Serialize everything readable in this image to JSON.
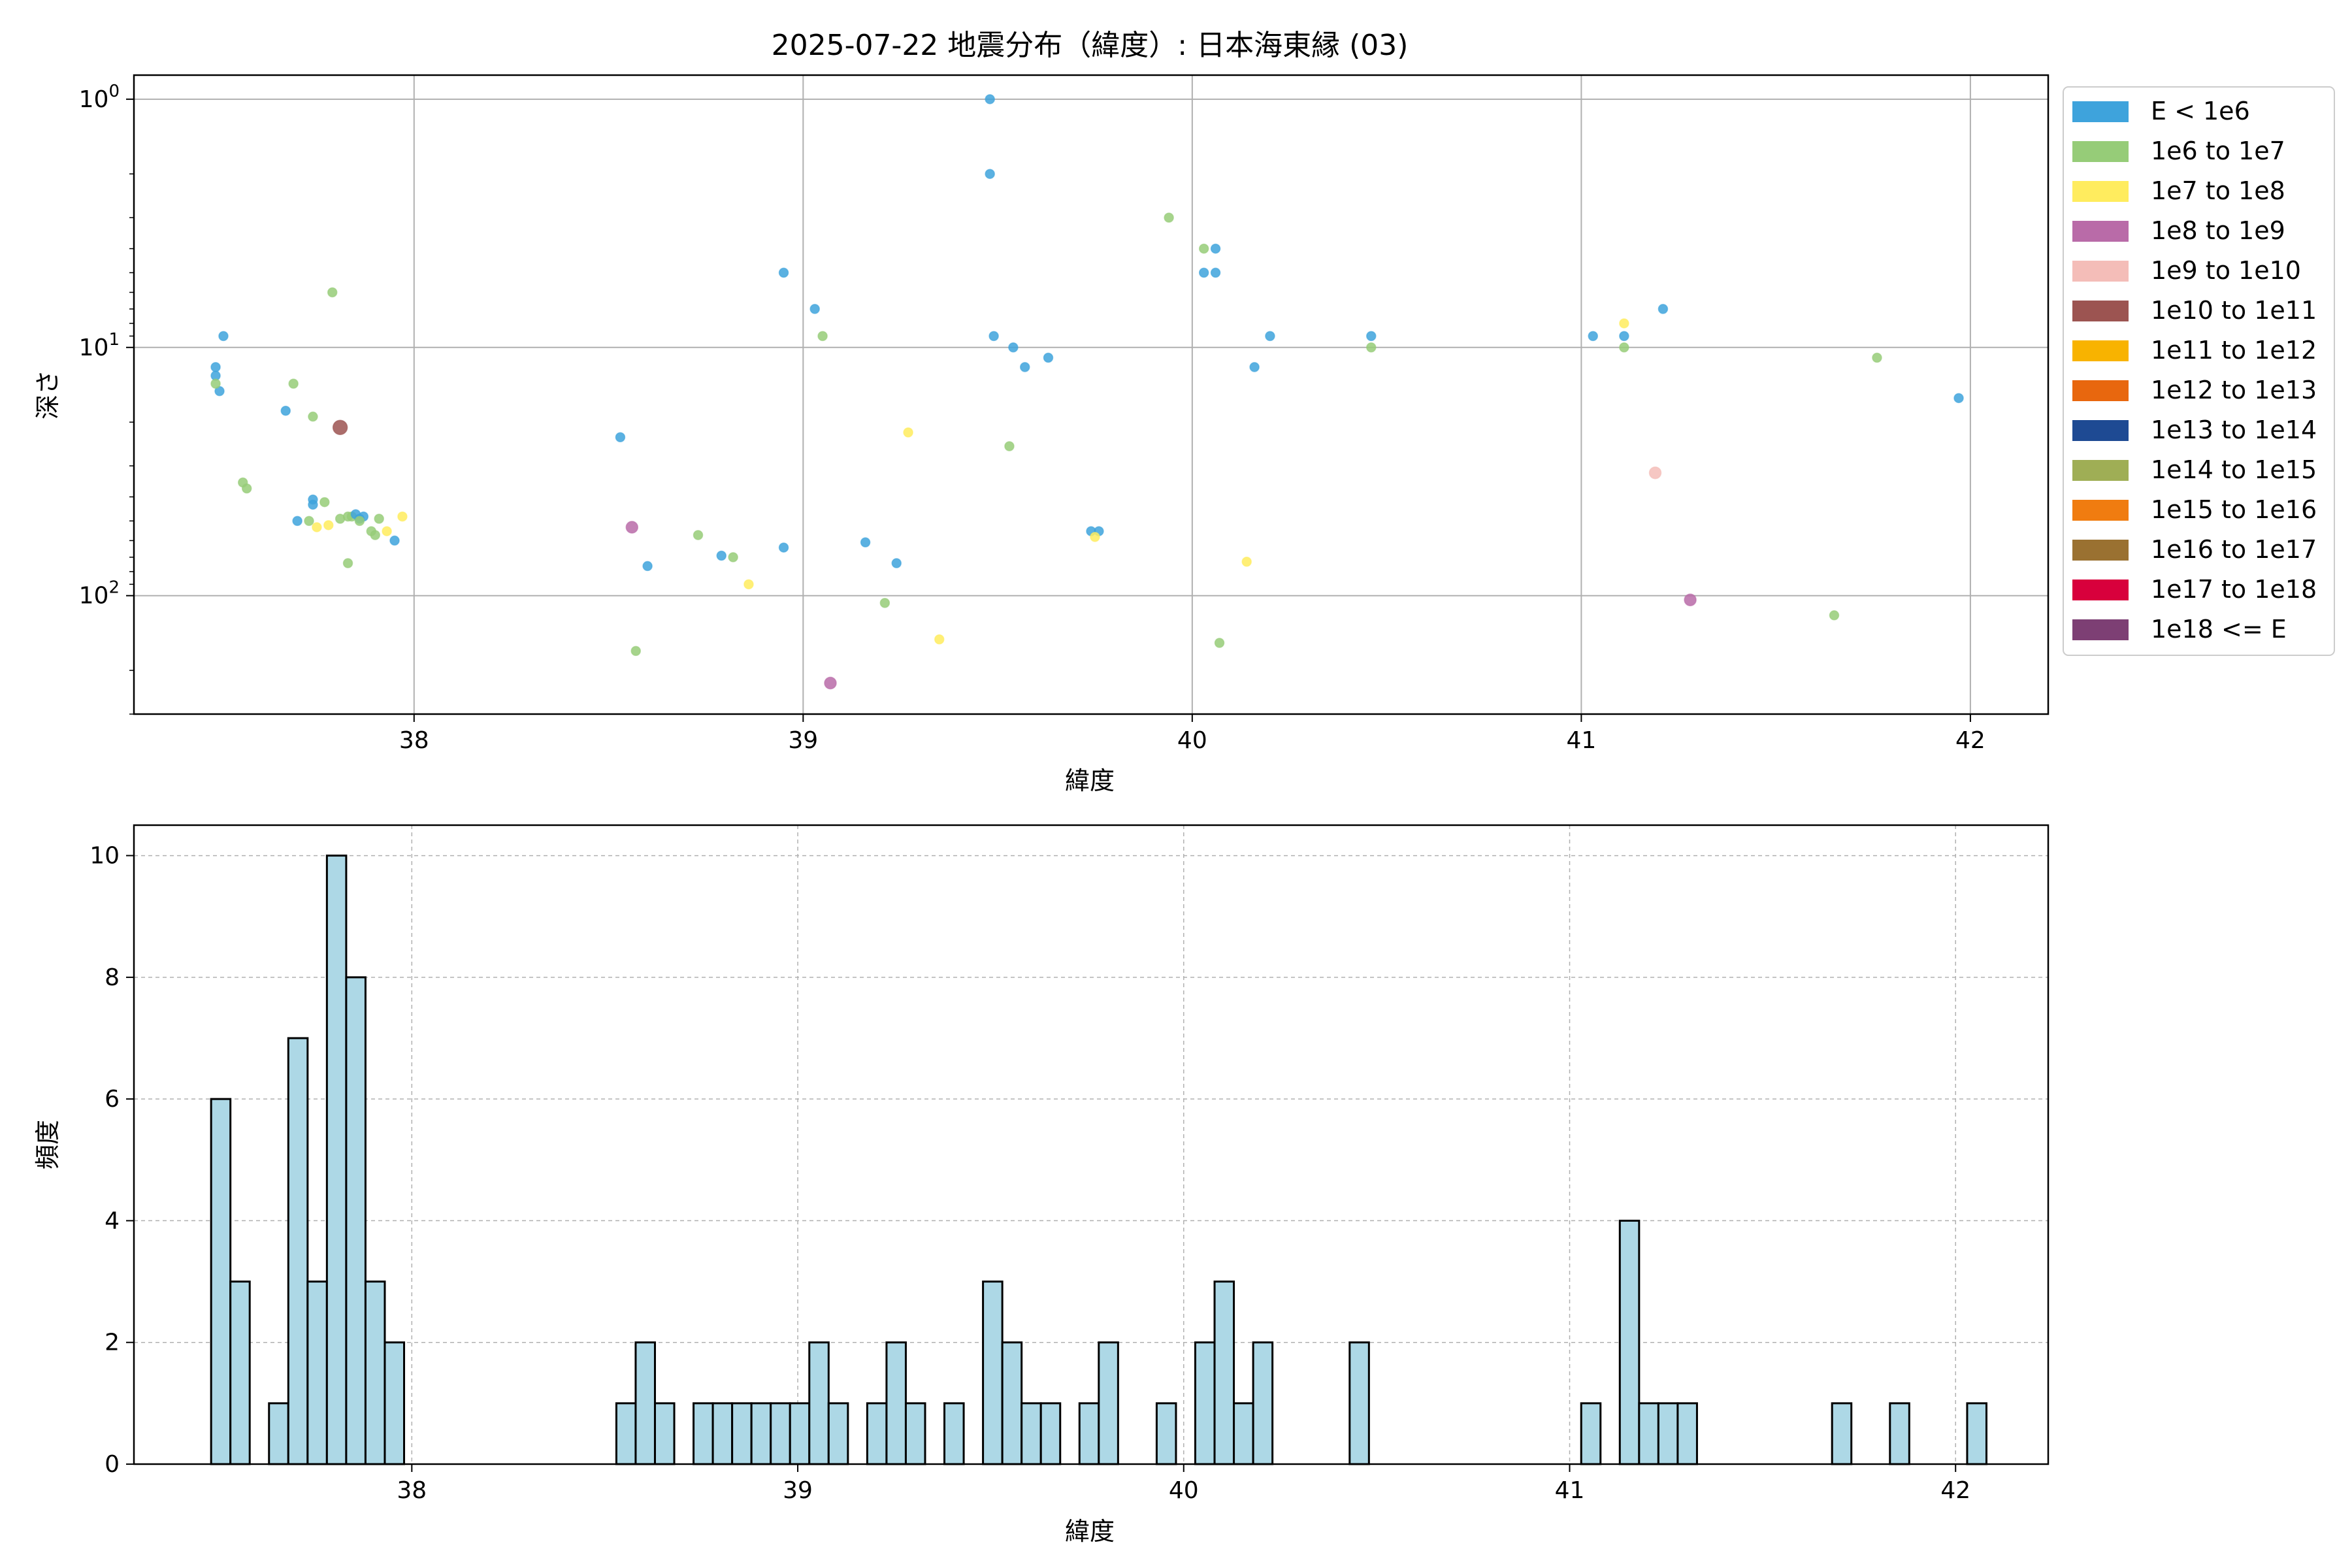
{
  "chart_data": [
    {
      "type": "scatter",
      "title": "2025-07-22 地震分布（緯度）: 日本海東縁 (03)",
      "xlabel": "緯度",
      "ylabel": "深さ",
      "xlim": [
        37.28,
        42.2
      ],
      "ylim": [
        300,
        0.8
      ],
      "yscale": "log",
      "yaxis_inverted": true,
      "grid": true,
      "x_ticks": [
        "38",
        "39",
        "40",
        "41",
        "42"
      ],
      "y_ticks": [
        "10^0",
        "10^1",
        "10^2"
      ],
      "legend_position": "outside-right",
      "legend": [
        {
          "label": "E < 1e6",
          "color": "#3ea3dc"
        },
        {
          "label": "1e6 to 1e7",
          "color": "#96cc78"
        },
        {
          "label": "1e7 to 1e8",
          "color": "#ffec5e"
        },
        {
          "label": "1e8 to 1e9",
          "color": "#b96ba8"
        },
        {
          "label": "1e9 to 1e10",
          "color": "#f4bdb8"
        },
        {
          "label": "1e10 to 1e11",
          "color": "#9c5451"
        },
        {
          "label": "1e11 to 1e12",
          "color": "#f8b300"
        },
        {
          "label": "1e12 to 1e13",
          "color": "#e8670e"
        },
        {
          "label": "1e13 to 1e14",
          "color": "#1e4a93"
        },
        {
          "label": "1e14 to 1e15",
          "color": "#9fae55"
        },
        {
          "label": "1e15 to 1e16",
          "color": "#f07c10"
        },
        {
          "label": "1e16 to 1e17",
          "color": "#9a7131"
        },
        {
          "label": "1e17 to 1e18",
          "color": "#d8003c"
        },
        {
          "label": "1e18 <= E",
          "color": "#7d3f74"
        }
      ],
      "points": [
        {
          "x": 37.51,
          "y": 9,
          "c": 0
        },
        {
          "x": 37.49,
          "y": 12,
          "c": 0
        },
        {
          "x": 37.49,
          "y": 13,
          "c": 0
        },
        {
          "x": 37.5,
          "y": 15,
          "c": 0
        },
        {
          "x": 37.49,
          "y": 14,
          "c": 1
        },
        {
          "x": 37.56,
          "y": 35,
          "c": 1
        },
        {
          "x": 37.57,
          "y": 37,
          "c": 1
        },
        {
          "x": 37.67,
          "y": 18,
          "c": 0
        },
        {
          "x": 37.69,
          "y": 14,
          "c": 1
        },
        {
          "x": 37.7,
          "y": 50,
          "c": 0
        },
        {
          "x": 37.73,
          "y": 50,
          "c": 1
        },
        {
          "x": 37.74,
          "y": 19,
          "c": 1
        },
        {
          "x": 37.74,
          "y": 41,
          "c": 0
        },
        {
          "x": 37.74,
          "y": 43,
          "c": 0
        },
        {
          "x": 37.75,
          "y": 53,
          "c": 2
        },
        {
          "x": 37.77,
          "y": 42,
          "c": 1
        },
        {
          "x": 37.78,
          "y": 52,
          "c": 2
        },
        {
          "x": 37.79,
          "y": 6,
          "c": 1
        },
        {
          "x": 37.81,
          "y": 21,
          "c": 5
        },
        {
          "x": 37.81,
          "y": 49,
          "c": 1
        },
        {
          "x": 37.83,
          "y": 48,
          "c": 1
        },
        {
          "x": 37.83,
          "y": 74,
          "c": 1
        },
        {
          "x": 37.84,
          "y": 48,
          "c": 1
        },
        {
          "x": 37.85,
          "y": 47,
          "c": 0
        },
        {
          "x": 37.86,
          "y": 49,
          "c": 0
        },
        {
          "x": 37.87,
          "y": 48,
          "c": 0
        },
        {
          "x": 37.86,
          "y": 50,
          "c": 1
        },
        {
          "x": 37.89,
          "y": 55,
          "c": 1
        },
        {
          "x": 37.9,
          "y": 57,
          "c": 1
        },
        {
          "x": 37.91,
          "y": 49,
          "c": 1
        },
        {
          "x": 37.93,
          "y": 55,
          "c": 2
        },
        {
          "x": 37.95,
          "y": 60,
          "c": 0
        },
        {
          "x": 37.97,
          "y": 48,
          "c": 2
        },
        {
          "x": 38.53,
          "y": 23,
          "c": 0
        },
        {
          "x": 38.56,
          "y": 53,
          "c": 3
        },
        {
          "x": 38.57,
          "y": 167,
          "c": 1
        },
        {
          "x": 38.6,
          "y": 76,
          "c": 0
        },
        {
          "x": 38.73,
          "y": 57,
          "c": 1
        },
        {
          "x": 38.79,
          "y": 69,
          "c": 0
        },
        {
          "x": 38.82,
          "y": 70,
          "c": 1
        },
        {
          "x": 38.86,
          "y": 90,
          "c": 2
        },
        {
          "x": 38.95,
          "y": 5,
          "c": 0
        },
        {
          "x": 38.95,
          "y": 64,
          "c": 0
        },
        {
          "x": 39.03,
          "y": 7,
          "c": 0
        },
        {
          "x": 39.05,
          "y": 9,
          "c": 1
        },
        {
          "x": 39.07,
          "y": 225,
          "c": 3
        },
        {
          "x": 39.16,
          "y": 61,
          "c": 0
        },
        {
          "x": 39.21,
          "y": 107,
          "c": 1
        },
        {
          "x": 39.24,
          "y": 74,
          "c": 0
        },
        {
          "x": 39.27,
          "y": 22,
          "c": 2
        },
        {
          "x": 39.35,
          "y": 150,
          "c": 2
        },
        {
          "x": 39.48,
          "y": 1,
          "c": 0
        },
        {
          "x": 39.48,
          "y": 2,
          "c": 0
        },
        {
          "x": 39.49,
          "y": 9,
          "c": 0
        },
        {
          "x": 39.53,
          "y": 25,
          "c": 1
        },
        {
          "x": 39.54,
          "y": 10,
          "c": 0
        },
        {
          "x": 39.57,
          "y": 12,
          "c": 0
        },
        {
          "x": 39.63,
          "y": 11,
          "c": 0
        },
        {
          "x": 39.74,
          "y": 55,
          "c": 0
        },
        {
          "x": 39.76,
          "y": 55,
          "c": 0
        },
        {
          "x": 39.75,
          "y": 58,
          "c": 2
        },
        {
          "x": 39.94,
          "y": 3,
          "c": 1
        },
        {
          "x": 40.03,
          "y": 4,
          "c": 1
        },
        {
          "x": 40.03,
          "y": 5,
          "c": 0
        },
        {
          "x": 40.06,
          "y": 4,
          "c": 0
        },
        {
          "x": 40.06,
          "y": 5,
          "c": 0
        },
        {
          "x": 40.07,
          "y": 155,
          "c": 1
        },
        {
          "x": 40.14,
          "y": 73,
          "c": 2
        },
        {
          "x": 40.16,
          "y": 12,
          "c": 0
        },
        {
          "x": 40.2,
          "y": 9,
          "c": 0
        },
        {
          "x": 40.46,
          "y": 9,
          "c": 0
        },
        {
          "x": 40.46,
          "y": 10,
          "c": 1
        },
        {
          "x": 41.03,
          "y": 9,
          "c": 0
        },
        {
          "x": 41.11,
          "y": 8,
          "c": 2
        },
        {
          "x": 41.11,
          "y": 9,
          "c": 0
        },
        {
          "x": 41.11,
          "y": 10,
          "c": 1
        },
        {
          "x": 41.19,
          "y": 32,
          "c": 4
        },
        {
          "x": 41.21,
          "y": 7,
          "c": 0
        },
        {
          "x": 41.28,
          "y": 104,
          "c": 3
        },
        {
          "x": 41.65,
          "y": 120,
          "c": 1
        },
        {
          "x": 41.76,
          "y": 11,
          "c": 1
        },
        {
          "x": 41.97,
          "y": 16,
          "c": 0
        }
      ]
    },
    {
      "type": "bar",
      "xlabel": "緯度",
      "ylabel": "頻度",
      "xlim": [
        37.28,
        42.24
      ],
      "ylim": [
        0,
        10.5
      ],
      "grid": true,
      "bar_color": "#add8e6",
      "x_ticks": [
        "38",
        "39",
        "40",
        "41",
        "42"
      ],
      "y_ticks": [
        "0",
        "2",
        "4",
        "6",
        "8",
        "10"
      ],
      "bin_start": 37.48,
      "bin_width": 0.05,
      "values": [
        6,
        3,
        0,
        1,
        7,
        3,
        10,
        8,
        3,
        2,
        0,
        0,
        0,
        0,
        0,
        0,
        0,
        0,
        0,
        0,
        0,
        1,
        2,
        1,
        0,
        1,
        1,
        1,
        1,
        1,
        1,
        2,
        1,
        0,
        1,
        2,
        1,
        0,
        1,
        0,
        3,
        2,
        1,
        1,
        0,
        1,
        2,
        0,
        0,
        1,
        0,
        2,
        3,
        1,
        2,
        0,
        0,
        0,
        0,
        2,
        0,
        0,
        0,
        0,
        0,
        0,
        0,
        0,
        0,
        0,
        0,
        1,
        0,
        4,
        1,
        1,
        1,
        0,
        0,
        0,
        0,
        0,
        0,
        0,
        1,
        0,
        0,
        1,
        0,
        0,
        0,
        1
      ]
    }
  ]
}
